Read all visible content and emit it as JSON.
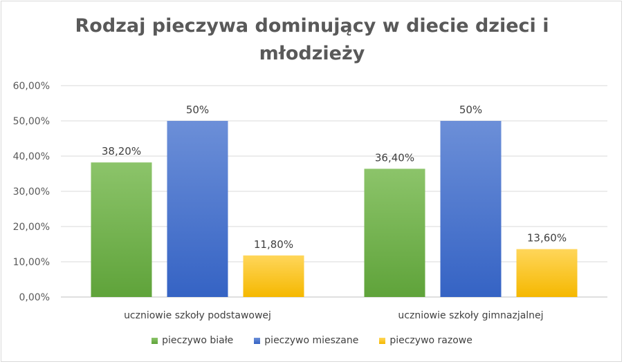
{
  "chart_data": {
    "type": "bar",
    "title_line1": "Rodzaj pieczywa dominujący w diecie dzieci i",
    "title_line2": "młodzieży",
    "categories": [
      "uczniowie szkoły podstawowej",
      "uczniowie szkoły gimnazjalnej"
    ],
    "series": [
      {
        "name": "pieczywo białe",
        "values": [
          38.2,
          36.4
        ],
        "labels": [
          "38,20%",
          "36,40%"
        ],
        "color_top": "#8cc46a",
        "color_bottom": "#5fa33a"
      },
      {
        "name": "pieczywo mieszane",
        "values": [
          50,
          50
        ],
        "labels": [
          "50%",
          "50%"
        ],
        "color_top": "#6c8fd8",
        "color_bottom": "#3563c4"
      },
      {
        "name": "pieczywo razowe",
        "values": [
          11.8,
          13.6
        ],
        "labels": [
          "11,80%",
          "13,60%"
        ],
        "color_top": "#ffd65a",
        "color_bottom": "#f5b800"
      }
    ],
    "ylim": [
      0,
      60
    ],
    "yticks": [
      "0,00%",
      "10,00%",
      "20,00%",
      "30,00%",
      "40,00%",
      "50,00%",
      "60,00%"
    ],
    "grid": true,
    "legend_position": "bottom"
  }
}
